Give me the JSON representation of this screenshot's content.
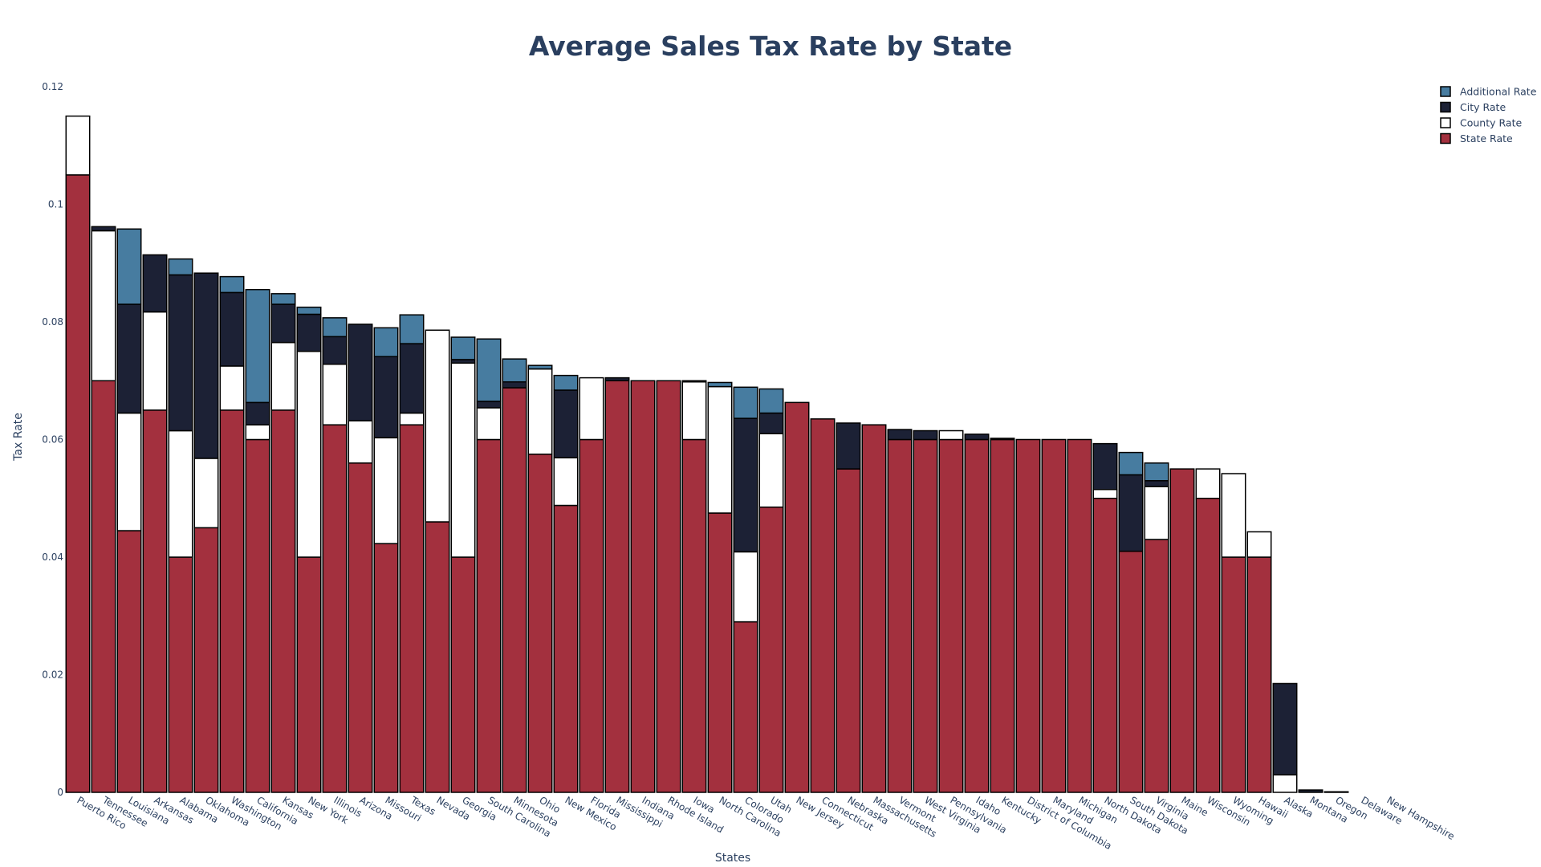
{
  "chart_data": {
    "type": "bar",
    "stacked": true,
    "title": "Average Sales Tax Rate by State",
    "xlabel": "States",
    "ylabel": "Tax Rate",
    "ylim": [
      0,
      0.12
    ],
    "yticks": [
      0,
      0.02,
      0.04,
      0.06,
      0.08,
      0.1,
      0.12
    ],
    "ytick_labels": [
      "0",
      "0.02",
      "0.04",
      "0.06",
      "0.08",
      "0.1",
      "0.12"
    ],
    "grid": false,
    "legend_position": "top-right",
    "categories": [
      "Puerto Rico",
      "Tennessee",
      "Louisiana",
      "Arkansas",
      "Alabama",
      "Oklahoma",
      "Washington",
      "California",
      "Kansas",
      "New York",
      "Illinois",
      "Arizona",
      "Missouri",
      "Texas",
      "Nevada",
      "Georgia",
      "South Carolina",
      "Minnesota",
      "Ohio",
      "New Mexico",
      "Florida",
      "Mississippi",
      "Indiana",
      "Rhode Island",
      "Iowa",
      "North Carolina",
      "Colorado",
      "Utah",
      "New Jersey",
      "Connecticut",
      "Nebraska",
      "Massachusetts",
      "Vermont",
      "West Virginia",
      "Pennsylvania",
      "Idaho",
      "Kentucky",
      "District of Columbia",
      "Maryland",
      "Michigan",
      "North Dakota",
      "South Dakota",
      "Virginia",
      "Maine",
      "Wisconsin",
      "Wyoming",
      "Hawaii",
      "Alaska",
      "Montana",
      "Oregon",
      "Delaware",
      "New Hampshire"
    ],
    "series": [
      {
        "name": "State Rate",
        "color": "#a3303e",
        "values": [
          0.105,
          0.07,
          0.0445,
          0.065,
          0.04,
          0.045,
          0.065,
          0.06,
          0.065,
          0.04,
          0.0625,
          0.056,
          0.0423,
          0.0625,
          0.046,
          0.04,
          0.06,
          0.0688,
          0.0575,
          0.0488,
          0.06,
          0.07,
          0.07,
          0.07,
          0.06,
          0.0475,
          0.029,
          0.0485,
          0.0663,
          0.0635,
          0.055,
          0.0625,
          0.06,
          0.06,
          0.06,
          0.06,
          0.06,
          0.06,
          0.06,
          0.06,
          0.05,
          0.041,
          0.043,
          0.055,
          0.05,
          0.04,
          0.04,
          0,
          0,
          0,
          0,
          0
        ]
      },
      {
        "name": "County Rate",
        "color": "#ffffff",
        "values": [
          0.01,
          0.0255,
          0.02,
          0.0167,
          0.0215,
          0.0118,
          0.0075,
          0.0025,
          0.0115,
          0.035,
          0.0103,
          0.0072,
          0.018,
          0.002,
          0.0326,
          0.033,
          0.0054,
          0,
          0.0145,
          0.0081,
          0.0105,
          0,
          0,
          0,
          0.0098,
          0.0215,
          0.0119,
          0.0125,
          0,
          0,
          0,
          0,
          0,
          0,
          0.0015,
          0,
          0,
          0,
          0,
          0,
          0.0015,
          0,
          0.009,
          0,
          0.005,
          0.0142,
          0.0043,
          0.003,
          0,
          0,
          0,
          0
        ]
      },
      {
        "name": "City Rate",
        "color": "#1c2135",
        "values": [
          0,
          0.0007,
          0.0185,
          0.0097,
          0.0265,
          0.0315,
          0.0125,
          0.0038,
          0.0065,
          0.0063,
          0.0047,
          0.0164,
          0.0138,
          0.0118,
          0,
          0.0006,
          0.0011,
          0.001,
          0,
          0.0115,
          0,
          0.0005,
          0,
          0,
          0.0002,
          0,
          0.0227,
          0.0035,
          0,
          0,
          0.0078,
          0,
          0.0017,
          0.0015,
          0,
          0.0009,
          0.0002,
          0,
          0,
          0,
          0.0078,
          0.013,
          0.001,
          0,
          0,
          0,
          0,
          0.0155,
          0.0004,
          0.0001,
          0,
          0
        ],
        "note_values_visible_as_bars": true
      },
      {
        "name": "Additional Rate",
        "color": "#477ca0",
        "values": [
          0,
          0,
          0.0128,
          0,
          0.0027,
          0,
          0.0027,
          0.0192,
          0.0018,
          0.0012,
          0.0032,
          0,
          0.0049,
          0.0049,
          0,
          0.0038,
          0.0106,
          0.0039,
          0.0006,
          0.0025,
          0,
          0,
          0,
          0,
          0,
          0.0007,
          0.0053,
          0.0041,
          0,
          0,
          0,
          0,
          0,
          0,
          0,
          0,
          0,
          0,
          0,
          0,
          0,
          0.0038,
          0.003,
          0,
          0,
          0,
          0,
          0,
          0,
          0,
          0,
          0
        ]
      }
    ]
  }
}
